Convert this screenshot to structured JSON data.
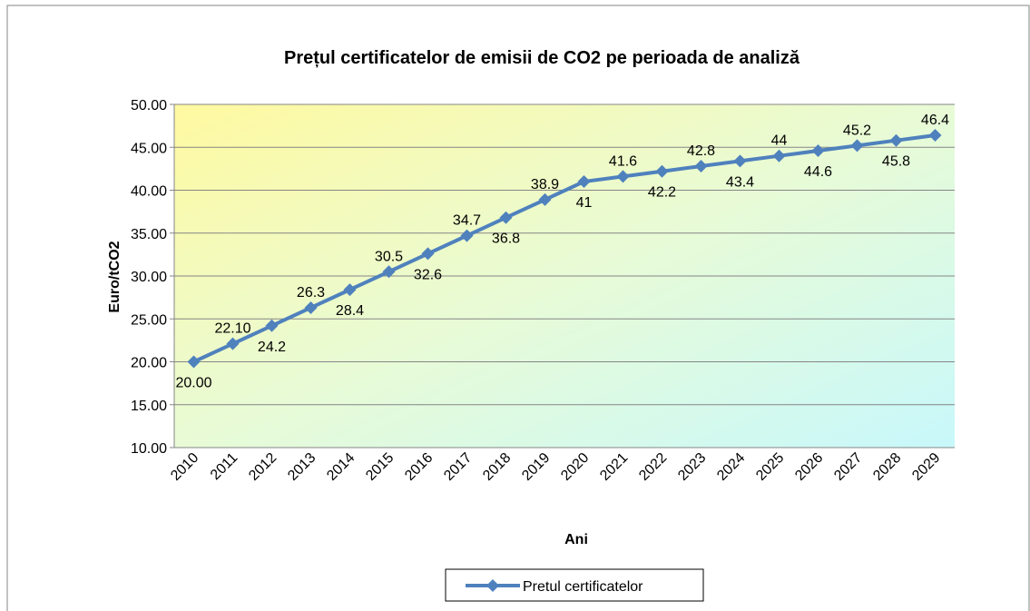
{
  "chart_data": {
    "type": "line",
    "title": "Prețul certificatelor de emisii de CO2 pe perioada de analiză",
    "x_label": "Ani",
    "y_label": "Euro/tCO2",
    "categories": [
      "2010",
      "2011",
      "2012",
      "2013",
      "2014",
      "2015",
      "2016",
      "2017",
      "2018",
      "2019",
      "2020",
      "2021",
      "2022",
      "2023",
      "2024",
      "2025",
      "2026",
      "2027",
      "2028",
      "2029"
    ],
    "series": [
      {
        "name": "Pretul certificatelor",
        "color": "#4f81bd",
        "values": [
          20,
          22.1,
          24.2,
          26.3,
          28.4,
          30.5,
          32.6,
          34.7,
          36.8,
          38.9,
          41,
          41.6,
          42.2,
          42.8,
          43.4,
          44,
          44.6,
          45.2,
          45.8,
          46.4
        ],
        "value_labels": [
          "20.00",
          "22.10",
          "24.2",
          "26.3",
          "28.4",
          "30.5",
          "32.6",
          "34.7",
          "36.8",
          "38.9",
          "41",
          "41.6",
          "42.2",
          "42.8",
          "43.4",
          "44",
          "44.6",
          "45.2",
          "45.8",
          "46.4"
        ]
      }
    ],
    "ylim": [
      10,
      50
    ],
    "yticks": [
      {
        "value": 10,
        "label": "10.00"
      },
      {
        "value": 15,
        "label": "15.00"
      },
      {
        "value": 20,
        "label": "20.00"
      },
      {
        "value": 25,
        "label": "25.00"
      },
      {
        "value": 30,
        "label": "30.00"
      },
      {
        "value": 35,
        "label": "35.00"
      },
      {
        "value": 40,
        "label": "40.00"
      },
      {
        "value": 45,
        "label": "45.00"
      },
      {
        "value": 50,
        "label": "50.00"
      }
    ],
    "grid": true,
    "legend": "bottom"
  }
}
